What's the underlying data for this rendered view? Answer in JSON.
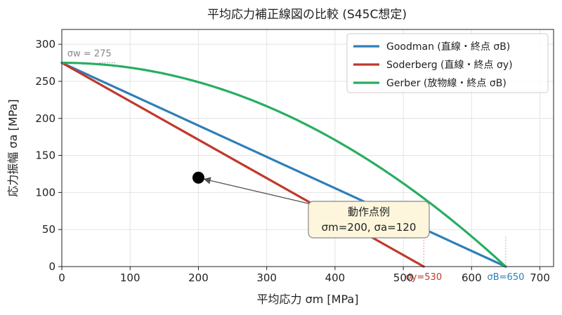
{
  "chart_data": {
    "type": "line",
    "title": "平均応力補正線図の比較 (S45C想定)",
    "xlabel": "平均応力 σm [MPa]",
    "ylabel": "応力振幅 σa [MPa]",
    "xlim": [
      0,
      720
    ],
    "ylim": [
      0,
      320
    ],
    "xticks": [
      0,
      100,
      200,
      300,
      400,
      500,
      600,
      700
    ],
    "yticks": [
      0,
      50,
      100,
      150,
      200,
      250,
      300
    ],
    "grid": true,
    "legend_position": "top-right",
    "sigma_w": 275,
    "sigma_y": 530,
    "sigma_B": 650,
    "series": [
      {
        "name": "Goodman (直線・終点 σB)",
        "shape": "linear",
        "color": "#2e7fb8",
        "x": [
          0,
          650
        ],
        "y": [
          275,
          0
        ]
      },
      {
        "name": "Soderberg (直線・終点 σy)",
        "shape": "linear",
        "color": "#c0392b",
        "x": [
          0,
          530
        ],
        "y": [
          275,
          0
        ]
      },
      {
        "name": "Gerber (放物線・終点 σB)",
        "shape": "parabola",
        "color": "#27ae60",
        "x": [
          0,
          650
        ],
        "y": [
          275,
          0
        ]
      }
    ],
    "operating_point": {
      "x": 200,
      "y": 120
    },
    "annotations": {
      "sigma_w_label": "σw = 275",
      "sigma_y_label": "σy=530",
      "sigma_B_label": "σB=650",
      "op_title": "動作点例",
      "op_values": "σm=200,  σa=120"
    }
  }
}
